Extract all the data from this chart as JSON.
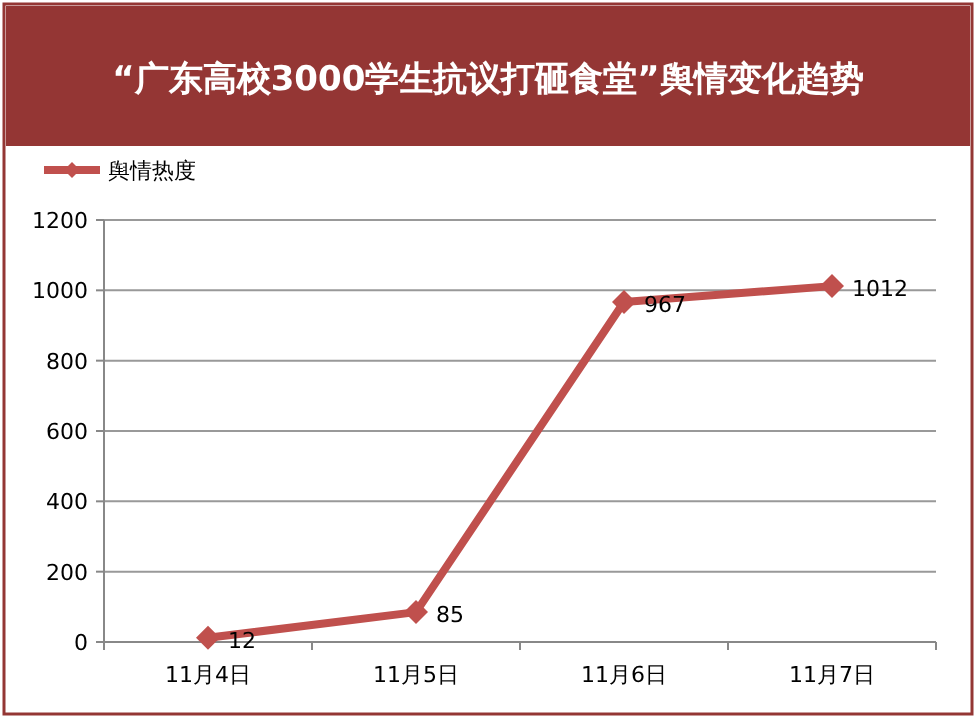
{
  "chart_data": {
    "type": "line",
    "title": "“广东高校3000学生抗议打砸食堂”舆情变化趋势",
    "categories": [
      "11月4日",
      "11月5日",
      "11月6日",
      "11月7日"
    ],
    "series": [
      {
        "name": "舆情热度",
        "color": "#c0504d",
        "values": [
          12,
          85,
          967,
          1012
        ]
      }
    ],
    "ylim": [
      0,
      1200
    ],
    "yticks": [
      0,
      200,
      400,
      600,
      800,
      1000,
      1200
    ],
    "grid": "y",
    "legend": "top left",
    "marker": "diamond",
    "line_style": "solid",
    "data_labels": true
  }
}
